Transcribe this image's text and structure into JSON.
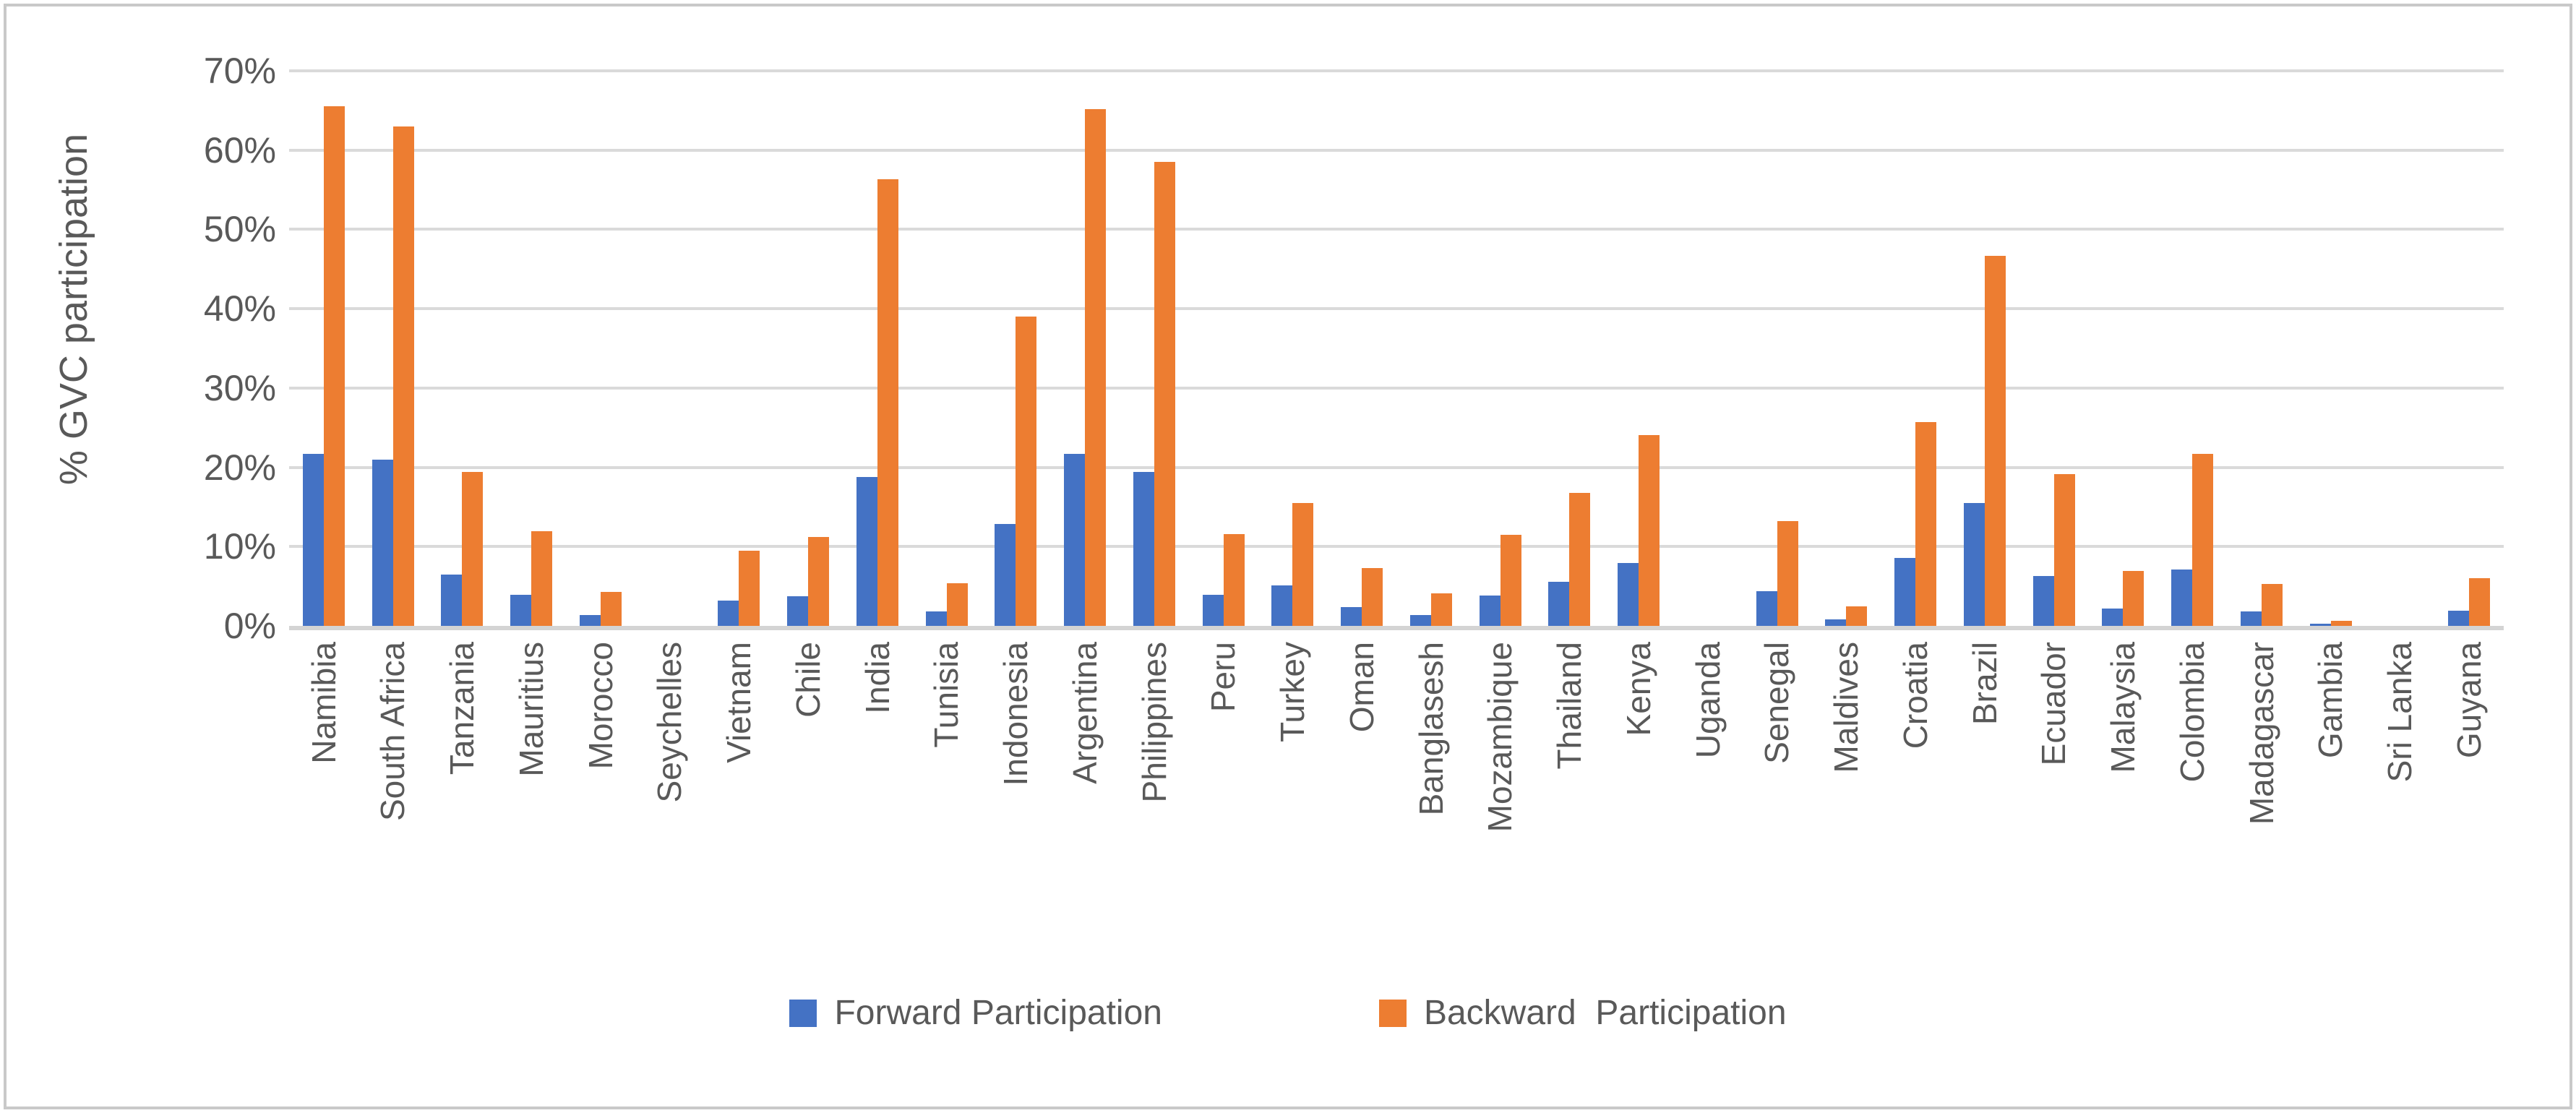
{
  "chart_data": {
    "type": "bar",
    "title": "",
    "ylabel": "% GVC participation",
    "xlabel": "",
    "ylim": [
      0,
      70
    ],
    "grid": true,
    "legend_position": "bottom",
    "yticks": [
      {
        "value": 70,
        "label": "70%"
      },
      {
        "value": 60,
        "label": "60%"
      },
      {
        "value": 50,
        "label": "50%"
      },
      {
        "value": 40,
        "label": "40%"
      },
      {
        "value": 30,
        "label": "30%"
      },
      {
        "value": 20,
        "label": "20%"
      },
      {
        "value": 10,
        "label": "10%"
      },
      {
        "value": 0,
        "label": "0%"
      }
    ],
    "categories": [
      "Namibia",
      "South Africa",
      "Tanzania",
      "Mauritius",
      "Morocco",
      "Seychelles",
      "Vietnam",
      "Chile",
      "India",
      "Tunisia",
      "Indonesia",
      "Argentina",
      "Philippines",
      "Peru",
      "Turkey",
      "Oman",
      "Banglasesh",
      "Mozambique",
      "Thailand",
      "Kenya",
      "Uganda",
      "Senegal",
      "Maldives",
      "Croatia",
      "Brazil",
      "Ecuador",
      "Malaysia",
      "Colombia",
      "Madagascar",
      "Gambia",
      "Sri Lanka",
      "Guyana"
    ],
    "series": [
      {
        "name": "Forward Participation",
        "color": "#4472C4",
        "values": [
          21.7,
          21.0,
          6.5,
          3.9,
          1.4,
          0,
          3.2,
          3.7,
          18.8,
          1.8,
          12.9,
          21.7,
          19.4,
          3.9,
          5.1,
          2.4,
          1.4,
          3.8,
          5.6,
          7.9,
          0,
          4.4,
          0.8,
          8.6,
          15.5,
          6.3,
          2.2,
          7.1,
          1.8,
          0.3,
          0,
          1.9
        ]
      },
      {
        "name": "Backward  Participation",
        "color": "#ED7D31",
        "values": [
          65.5,
          63.0,
          19.4,
          11.9,
          4.3,
          0,
          9.5,
          11.2,
          56.3,
          5.4,
          39.0,
          65.2,
          58.5,
          11.6,
          15.5,
          7.3,
          4.1,
          11.5,
          16.8,
          24.1,
          0,
          13.2,
          2.5,
          25.7,
          46.7,
          19.1,
          6.9,
          21.7,
          5.3,
          0.6,
          0,
          6.0
        ]
      }
    ]
  },
  "colors": {
    "gridline": "#dadada",
    "axis_line": "#d4d4d4",
    "text": "#595959",
    "frame_border": "#c9c9c9",
    "background": "#ffffff"
  }
}
